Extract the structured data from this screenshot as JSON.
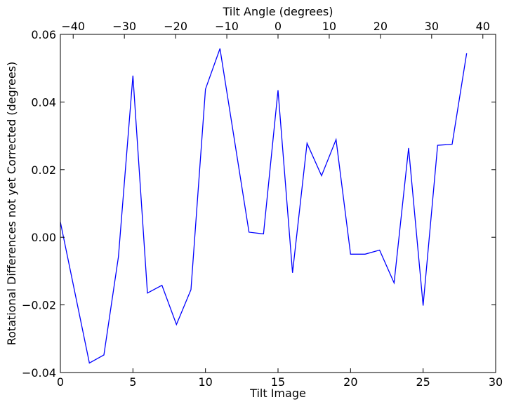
{
  "chart_data": {
    "type": "line",
    "title": "",
    "xlabel": "Tilt Image",
    "ylabel": "Rotational Differences not yet Corrected (degrees)",
    "top_xlabel": "Tilt Angle (degrees)",
    "xlim": [
      0,
      30
    ],
    "ylim": [
      -0.04,
      0.06
    ],
    "top_xlim": [
      -42.5,
      42.5
    ],
    "grid": false,
    "legend": "none",
    "x_ticks": [
      0,
      5,
      10,
      15,
      20,
      25,
      30
    ],
    "x_tick_labels": [
      "0",
      "5",
      "10",
      "15",
      "20",
      "25",
      "30"
    ],
    "y_ticks": [
      -0.04,
      -0.02,
      0.0,
      0.02,
      0.04,
      0.06
    ],
    "y_tick_labels": [
      "−0.04",
      "−0.02",
      "0.00",
      "0.02",
      "0.04",
      "0.06"
    ],
    "top_ticks": [
      -40,
      -30,
      -20,
      -10,
      0,
      10,
      20,
      30,
      40
    ],
    "top_tick_labels": [
      "−40",
      "−30",
      "−20",
      "−10",
      "0",
      "10",
      "20",
      "30",
      "40"
    ],
    "line_color": "#0000ff",
    "series": [
      {
        "x": [
          0,
          2,
          3,
          4,
          5,
          6,
          7,
          8,
          9,
          10,
          11,
          13,
          14,
          15,
          16,
          17,
          18,
          19,
          20,
          21,
          22,
          23,
          24,
          25,
          26,
          27,
          28
        ],
        "values": [
          0.0045,
          -0.0372,
          -0.0348,
          -0.0058,
          0.0478,
          -0.0165,
          -0.0142,
          -0.0258,
          -0.0155,
          0.0438,
          0.0558,
          0.0015,
          0.001,
          0.0435,
          -0.0105,
          0.0278,
          0.0182,
          0.0289,
          -0.005,
          -0.005,
          -0.0038,
          -0.0135,
          0.0264,
          -0.0202,
          0.0272,
          0.0275,
          0.0544
        ]
      }
    ]
  }
}
